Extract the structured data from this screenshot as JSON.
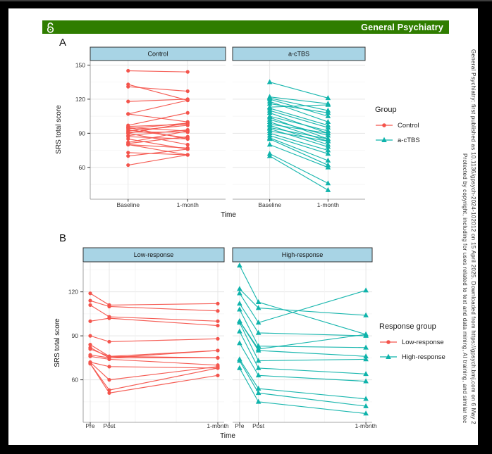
{
  "banner": {
    "title": "General Psychiatry",
    "background_color": "#2f7d00",
    "icon": "open-access-lock-icon"
  },
  "watermark": {
    "line1": "General Psychiatry: first published as 10.1136/gpsych-2024-102012 on 15 April 2025. Downloaded from https://gpsych.bmj.com on 6 May 2",
    "line2": "Protected by copyright, including for uses related to text and data mining, AI training, and similar tec"
  },
  "strip_color": "#a8d4e5",
  "chart_data": [
    {
      "type": "line",
      "panel_label": "A",
      "facets": [
        "Control",
        "a-cTBS"
      ],
      "x_categories": [
        "Baseline",
        "1-month"
      ],
      "xlabel": "Time",
      "ylabel": "SRS total score",
      "yticks": [
        60,
        90,
        120,
        150
      ],
      "ylim": [
        32,
        154
      ],
      "grid": true,
      "legend": {
        "title": "Group",
        "position": "right",
        "items": [
          {
            "label": "Control",
            "color": "#f4544c",
            "marker": "circle"
          },
          {
            "label": "a-cTBS",
            "color": "#0fb3ab",
            "marker": "triangle"
          }
        ]
      },
      "series": [
        {
          "facet": "Control",
          "color": "#f4544c",
          "marker": "circle",
          "subjects": [
            [
              145,
              144
            ],
            [
              133,
              119
            ],
            [
              131,
              127
            ],
            [
              118,
              120
            ],
            [
              107,
              119
            ],
            [
              107,
              100
            ],
            [
              97,
              108
            ],
            [
              96,
              98
            ],
            [
              95,
              92
            ],
            [
              95,
              85
            ],
            [
              94,
              99
            ],
            [
              93,
              86
            ],
            [
              92,
              97
            ],
            [
              91,
              91
            ],
            [
              90,
              99
            ],
            [
              90,
              80
            ],
            [
              88,
              93
            ],
            [
              87,
              85
            ],
            [
              85,
              76
            ],
            [
              82,
              92
            ],
            [
              81,
              87
            ],
            [
              80,
              77
            ],
            [
              80,
              71
            ],
            [
              73,
              71
            ],
            [
              70,
              76
            ],
            [
              62,
              71
            ]
          ]
        },
        {
          "facet": "a-cTBS",
          "color": "#0fb3ab",
          "marker": "triangle",
          "subjects": [
            [
              135,
              121
            ],
            [
              122,
              116
            ],
            [
              121,
              110
            ],
            [
              120,
              105
            ],
            [
              118,
              100
            ],
            [
              116,
              108
            ],
            [
              113,
              115
            ],
            [
              112,
              97
            ],
            [
              110,
              95
            ],
            [
              108,
              90
            ],
            [
              105,
              92
            ],
            [
              104,
              85
            ],
            [
              102,
              88
            ],
            [
              100,
              83
            ],
            [
              98,
              90
            ],
            [
              97,
              80
            ],
            [
              95,
              85
            ],
            [
              94,
              78
            ],
            [
              92,
              83
            ],
            [
              90,
              75
            ],
            [
              88,
              72
            ],
            [
              86,
              66
            ],
            [
              85,
              62
            ],
            [
              80,
              60
            ],
            [
              72,
              46
            ],
            [
              70,
              40
            ]
          ]
        }
      ]
    },
    {
      "type": "line",
      "panel_label": "B",
      "facets": [
        "Low-response",
        "High-response"
      ],
      "x_categories": [
        "Pre",
        "Post",
        "1-month"
      ],
      "xlabel": "Time",
      "ylabel": "SRS total score",
      "yticks": [
        60,
        90,
        120
      ],
      "ylim": [
        31,
        140
      ],
      "grid": true,
      "legend": {
        "title": "Response group",
        "position": "right",
        "items": [
          {
            "label": "Low-response",
            "color": "#f4544c",
            "marker": "circle"
          },
          {
            "label": "High-response",
            "color": "#0fb3ab",
            "marker": "triangle"
          }
        ]
      },
      "series": [
        {
          "facet": "Low-response",
          "color": "#f4544c",
          "marker": "circle",
          "subjects": [
            [
              119,
              111,
              112
            ],
            [
              114,
              110,
              107
            ],
            [
              111,
              103,
              100
            ],
            [
              100,
              102,
              97
            ],
            [
              90,
              86,
              88
            ],
            [
              84,
              76,
              80
            ],
            [
              82,
              75,
              80
            ],
            [
              81,
              76,
              75
            ],
            [
              77,
              75,
              75
            ],
            [
              76,
              74,
              70
            ],
            [
              72,
              69,
              68
            ],
            [
              72,
              60,
              69
            ],
            [
              71,
              53,
              68
            ],
            [
              71,
              51,
              63
            ]
          ]
        },
        {
          "facet": "High-response",
          "color": "#0fb3ab",
          "marker": "triangle",
          "subjects": [
            [
              138,
              113,
              91
            ],
            [
              122,
              109,
              104
            ],
            [
              119,
              99,
              121
            ],
            [
              112,
              92,
              90
            ],
            [
              108,
              83,
              82
            ],
            [
              100,
              81,
              91
            ],
            [
              100,
              80,
              76
            ],
            [
              99,
              73,
              74
            ],
            [
              93,
              68,
              64
            ],
            [
              85,
              63,
              59
            ],
            [
              74,
              54,
              47
            ],
            [
              73,
              51,
              42
            ],
            [
              68,
              45,
              37
            ]
          ]
        }
      ]
    }
  ]
}
